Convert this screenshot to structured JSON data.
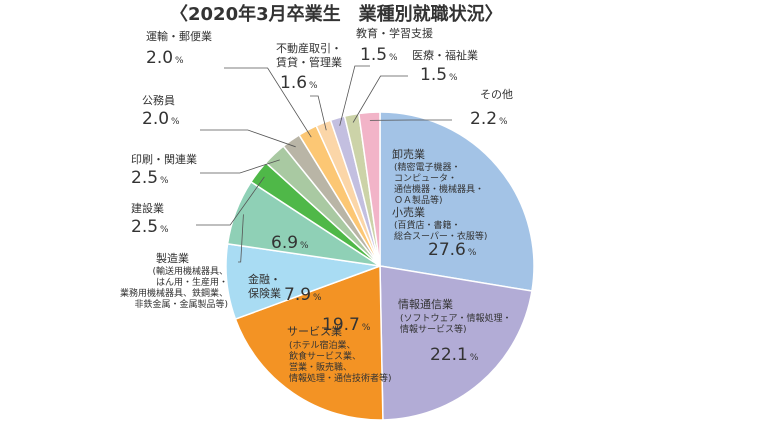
{
  "chart_data": {
    "type": "pie",
    "title": "〈2020年3月卒業生　業種別就職状況〉",
    "unit": "%",
    "slices": [
      {
        "name": "卸売業・小売業",
        "value": 27.6,
        "color": "#a3c3e6",
        "label_lines": [
          "卸売業",
          "小売業"
        ],
        "sub_lines": [
          [
            "(精密電子機器・",
            "コンピュータ・",
            "通信機器・機械器具・",
            "ＯＡ製品等)"
          ],
          [
            "(百貨店・書籍・",
            "総合スーパー・衣服等)"
          ]
        ]
      },
      {
        "name": "情報通信業",
        "value": 22.1,
        "color": "#b2acd6",
        "label_lines": [
          "情報通信業"
        ],
        "sub_lines": [
          [
            "(ソフトウェア・情報処理・",
            "情報サービス等)"
          ]
        ]
      },
      {
        "name": "サービス業",
        "value": 19.7,
        "color": "#f39324",
        "label_lines": [
          "サービス業"
        ],
        "sub_lines": [
          [
            "(ホテル宿泊業、",
            "飲食サービス業、",
            "営業・販売職、",
            "情報処理・通信技術者等)"
          ]
        ]
      },
      {
        "name": "金融・保険業",
        "value": 7.9,
        "color": "#a9dcf3",
        "label_lines": [
          "金融・",
          "保険業"
        ],
        "sub_lines": []
      },
      {
        "name": "製造業",
        "value": 6.9,
        "color": "#8fd0b6",
        "label_lines": [
          "製造業"
        ],
        "sub_lines": [
          [
            "(輸送用機械器具、",
            "はん用・生産用・",
            "業務用機械器具、鉄鋼業、",
            "非鉄金属・金属製品等)"
          ]
        ]
      },
      {
        "name": "建設業",
        "value": 2.5,
        "color": "#4fb848",
        "label_lines": [
          "建設業"
        ],
        "sub_lines": []
      },
      {
        "name": "印刷・関連業",
        "value": 2.5,
        "color": "#a9c9a2",
        "label_lines": [
          "印刷・関連業"
        ],
        "sub_lines": []
      },
      {
        "name": "公務員",
        "value": 2.0,
        "color": "#b9b5a6",
        "label_lines": [
          "公務員"
        ],
        "sub_lines": []
      },
      {
        "name": "運輸・郵便業",
        "value": 2.0,
        "color": "#fcc774",
        "label_lines": [
          "運輸・郵便業"
        ],
        "sub_lines": []
      },
      {
        "name": "不動産取引・賃貸・管理業",
        "value": 1.6,
        "color": "#fbd6a8",
        "label_lines": [
          "不動産取引・",
          "賃貸・管理業"
        ],
        "sub_lines": []
      },
      {
        "name": "教育・学習支援",
        "value": 1.5,
        "color": "#c3bfe0",
        "label_lines": [
          "教育・学習支援"
        ],
        "sub_lines": []
      },
      {
        "name": "医療・福祉業",
        "value": 1.5,
        "color": "#ccd3a8",
        "label_lines": [
          "医療・福祉業"
        ],
        "sub_lines": []
      },
      {
        "name": "その他",
        "value": 2.2,
        "color": "#f2b4c8",
        "label_lines": [
          "その他"
        ],
        "sub_lines": []
      }
    ]
  }
}
